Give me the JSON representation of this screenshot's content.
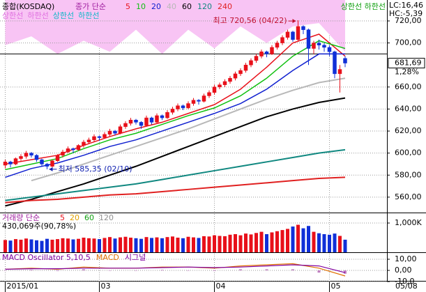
{
  "chart_data": [
    {
      "type": "candlestick",
      "title": "종합(KOSDAQ)",
      "ma_label": "종가 단순",
      "x": [
        0,
        1,
        2,
        3,
        4,
        5,
        6,
        7,
        8,
        9,
        10,
        11,
        12,
        13,
        14,
        15,
        16,
        17,
        18,
        19,
        20,
        21,
        22,
        23,
        24,
        25,
        26,
        27,
        28,
        29,
        30,
        31,
        32,
        33,
        34,
        35,
        36,
        37,
        38,
        39,
        40,
        41,
        42,
        43,
        44,
        45,
        46,
        47,
        48,
        49,
        50,
        51,
        52,
        53,
        54,
        55,
        56,
        57,
        58,
        59,
        60,
        61,
        62,
        63,
        64,
        65
      ],
      "ohlc": [
        [
          589,
          594,
          586,
          592
        ],
        [
          592,
          593,
          587,
          590
        ],
        [
          590,
          596,
          589,
          595
        ],
        [
          595,
          599,
          593,
          597
        ],
        [
          597,
          602,
          595,
          600
        ],
        [
          600,
          601,
          596,
          598
        ],
        [
          598,
          599,
          592,
          594
        ],
        [
          594,
          595,
          588,
          590
        ],
        [
          590,
          591,
          585.35,
          588
        ],
        [
          588,
          594,
          587,
          593
        ],
        [
          593,
          599,
          592,
          598
        ],
        [
          598,
          603,
          596,
          601
        ],
        [
          601,
          606,
          600,
          604
        ],
        [
          604,
          605,
          600,
          603
        ],
        [
          603,
          608,
          602,
          607
        ],
        [
          607,
          612,
          605,
          610
        ],
        [
          610,
          614,
          608,
          612
        ],
        [
          612,
          617,
          610,
          615
        ],
        [
          615,
          616,
          611,
          614
        ],
        [
          614,
          619,
          613,
          617
        ],
        [
          617,
          622,
          615,
          620
        ],
        [
          620,
          621,
          616,
          618
        ],
        [
          618,
          626,
          617,
          624
        ],
        [
          624,
          629,
          622,
          627
        ],
        [
          627,
          632,
          625,
          630
        ],
        [
          630,
          631,
          626,
          628
        ],
        [
          628,
          629,
          622,
          625
        ],
        [
          625,
          634,
          624,
          632
        ],
        [
          632,
          633,
          626,
          628
        ],
        [
          628,
          636,
          627,
          634
        ],
        [
          634,
          635,
          630,
          632
        ],
        [
          632,
          639,
          631,
          637
        ],
        [
          637,
          642,
          635,
          640
        ],
        [
          640,
          645,
          638,
          643
        ],
        [
          643,
          644,
          639,
          641
        ],
        [
          641,
          647,
          640,
          645
        ],
        [
          645,
          650,
          643,
          648
        ],
        [
          648,
          649,
          644,
          647
        ],
        [
          647,
          654,
          646,
          652
        ],
        [
          652,
          657,
          650,
          655
        ],
        [
          655,
          662,
          653,
          660
        ],
        [
          660,
          664,
          658,
          662
        ],
        [
          662,
          667,
          660,
          665
        ],
        [
          665,
          670,
          663,
          668
        ],
        [
          668,
          674,
          666,
          672
        ],
        [
          672,
          677,
          670,
          675
        ],
        [
          675,
          682,
          673,
          680
        ],
        [
          680,
          686,
          678,
          684
        ],
        [
          684,
          690,
          682,
          688
        ],
        [
          688,
          694,
          686,
          692
        ],
        [
          692,
          693,
          687,
          690
        ],
        [
          690,
          698,
          689,
          696
        ],
        [
          696,
          702,
          694,
          700
        ],
        [
          700,
          707,
          698,
          705
        ],
        [
          705,
          712,
          703,
          710
        ],
        [
          710,
          711,
          701,
          703
        ],
        [
          703,
          720.56,
          702,
          715
        ],
        [
          715,
          716,
          708,
          712
        ],
        [
          712,
          713,
          680,
          695
        ],
        [
          695,
          702,
          690,
          700
        ],
        [
          700,
          703,
          694,
          698
        ],
        [
          698,
          700,
          692,
          696
        ],
        [
          696,
          698,
          688,
          692
        ],
        [
          692,
          693,
          668,
          672
        ],
        [
          672,
          680,
          655,
          676
        ],
        [
          686,
          688,
          678,
          681.69
        ]
      ],
      "up_color": "#e8101a",
      "down_color": "#1030d8",
      "series": [
        {
          "name": "5",
          "color": "#e8101a",
          "x": [
            0,
            5,
            10,
            15,
            20,
            25,
            30,
            35,
            40,
            45,
            50,
            55,
            60,
            65
          ],
          "values": [
            590,
            594,
            598,
            607,
            615,
            622,
            628,
            636,
            644,
            658,
            678,
            700,
            708,
            688
          ]
        },
        {
          "name": "10",
          "color": "#10c010",
          "x": [
            0,
            5,
            10,
            15,
            20,
            25,
            30,
            35,
            40,
            45,
            50,
            55,
            60,
            65
          ],
          "values": [
            585,
            590,
            595,
            604,
            612,
            618,
            626,
            634,
            641,
            652,
            668,
            688,
            702,
            695
          ]
        },
        {
          "name": "20",
          "color": "#1020d0",
          "x": [
            0,
            5,
            10,
            15,
            20,
            25,
            30,
            35,
            40,
            45,
            50,
            55,
            60,
            65
          ],
          "values": [
            578,
            586,
            591,
            598,
            606,
            612,
            620,
            628,
            636,
            645,
            658,
            675,
            690,
            690
          ]
        },
        {
          "name": "40",
          "color": "#b8b8b8",
          "x": [
            0,
            5,
            10,
            15,
            20,
            25,
            30,
            35,
            40,
            45,
            50,
            55,
            60,
            65
          ],
          "values": [
            null,
            575,
            582,
            590,
            598,
            606,
            614,
            622,
            631,
            640,
            649,
            657,
            664,
            668
          ]
        },
        {
          "name": "60",
          "color": "#000000",
          "x": [
            0,
            5,
            10,
            15,
            20,
            25,
            30,
            35,
            40,
            45,
            50,
            55,
            60,
            65
          ],
          "values": [
            552,
            558,
            565,
            572,
            580,
            588,
            597,
            606,
            615,
            624,
            633,
            640,
            646,
            650
          ]
        },
        {
          "name": "120",
          "color": "#108880",
          "x": [
            0,
            5,
            10,
            15,
            20,
            25,
            30,
            35,
            40,
            45,
            50,
            55,
            60,
            65
          ],
          "values": [
            557,
            560,
            563,
            566,
            569,
            572,
            576,
            580,
            584,
            588,
            592,
            596,
            600,
            603
          ]
        },
        {
          "name": "240",
          "color": "#e02020",
          "x": [
            0,
            5,
            10,
            15,
            20,
            25,
            30,
            35,
            40,
            45,
            50,
            55,
            60,
            65
          ],
          "values": [
            555,
            557,
            558,
            560,
            562,
            563,
            565,
            567,
            569,
            571,
            573,
            575,
            577,
            578
          ]
        }
      ],
      "band": {
        "color": "#f8c4f4",
        "x": [
          0,
          5,
          10,
          15,
          20,
          25,
          30,
          35,
          40,
          45,
          50,
          55,
          60,
          65
        ],
        "values": [
          698,
          706,
          690,
          702,
          692,
          712,
          690,
          712,
          695,
          715,
          700,
          715,
          718,
          692
        ]
      },
      "band_labels": [
        {
          "text": "상한선",
          "color": "#e070e0"
        },
        {
          "text": "하한선",
          "color": "#e070e0"
        },
        {
          "text": "상한선",
          "color": "#10b8c8"
        },
        {
          "text": "하한선",
          "color": "#10b8c8"
        }
      ],
      "band2_label": {
        "text": "상한선 하한선",
        "color": "#10a010"
      },
      "ref_line": 690,
      "ylim": [
        546,
        739
      ],
      "yticks": [
        {
          "value": 720,
          "label": "720,00"
        },
        {
          "value": 700,
          "label": "700,00"
        },
        {
          "value": 660,
          "label": "660,00"
        },
        {
          "value": 640,
          "label": "640,00"
        },
        {
          "value": 620,
          "label": "620,00"
        },
        {
          "value": 600,
          "label": "600,00"
        },
        {
          "value": 580,
          "label": "580,00"
        },
        {
          "value": 560,
          "label": "560,00"
        }
      ],
      "xlim": [
        -1,
        73
      ],
      "xticks": [
        {
          "value": 0,
          "label": "2015/01"
        },
        {
          "value": 18,
          "label": "03"
        },
        {
          "value": 40,
          "label": "04"
        },
        {
          "value": 62,
          "label": "05"
        }
      ],
      "last_date": "05/08",
      "last_price": {
        "value": 681.69,
        "label": "681,69"
      },
      "change_label": "1,28%",
      "lc_label": "LC:16,46",
      "hc_label": "HC:-5,39",
      "annotations": [
        {
          "text": "최고 720,56 (04/22)",
          "x": 56,
          "y": 720.56
        },
        {
          "text": "최저 585,35 (02/10)",
          "x": 8,
          "y": 585.35
        }
      ]
    },
    {
      "type": "bar",
      "title": "거래량 단순",
      "ma_names": [
        {
          "name": "5",
          "color": "#e8101a"
        },
        {
          "name": "20",
          "color": "#e0a000"
        },
        {
          "name": "60",
          "color": "#10a010"
        },
        {
          "name": "120",
          "color": "#909090"
        }
      ],
      "last_label": "430,069주(90,78%)",
      "x": [
        0,
        1,
        2,
        3,
        4,
        5,
        6,
        7,
        8,
        9,
        10,
        11,
        12,
        13,
        14,
        15,
        16,
        17,
        18,
        19,
        20,
        21,
        22,
        23,
        24,
        25,
        26,
        27,
        28,
        29,
        30,
        31,
        32,
        33,
        34,
        35,
        36,
        37,
        38,
        39,
        40,
        41,
        42,
        43,
        44,
        45,
        46,
        47,
        48,
        49,
        50,
        51,
        52,
        53,
        54,
        55,
        56,
        57,
        58,
        59,
        60,
        61,
        62,
        63,
        64,
        65
      ],
      "values": [
        420,
        400,
        450,
        430,
        470,
        440,
        410,
        390,
        460,
        430,
        450,
        480,
        470,
        440,
        460,
        500,
        480,
        470,
        450,
        490,
        520,
        470,
        510,
        530,
        500,
        480,
        460,
        520,
        490,
        510,
        480,
        520,
        540,
        500,
        480,
        530,
        510,
        490,
        550,
        540,
        580,
        560,
        550,
        600,
        620,
        580,
        640,
        610,
        660,
        700,
        620,
        680,
        720,
        760,
        800,
        880,
        940,
        820,
        900,
        700,
        650,
        620,
        600,
        640,
        560,
        430.069
      ],
      "ylim": [
        0,
        1310
      ],
      "yticks": [
        {
          "value": 1000,
          "label": "1,000K"
        }
      ]
    },
    {
      "type": "macd",
      "title": "MACD Oscillator 5,10,5",
      "x": [
        0,
        5,
        10,
        15,
        20,
        25,
        30,
        35,
        40,
        45,
        50,
        55,
        60,
        65
      ],
      "oscillator": [
        0,
        0.5,
        -0.5,
        1,
        0,
        0,
        0.5,
        0,
        -0.5,
        1,
        1,
        1,
        -2,
        -3
      ],
      "osc_color": "#c080c0",
      "series": [
        {
          "name": "MACD",
          "color": "#e07000",
          "values": [
            1,
            2,
            1,
            3,
            2,
            2,
            3,
            3,
            2,
            4,
            5,
            6,
            2,
            -5
          ]
        },
        {
          "name": "시그널",
          "color": "#8000a0",
          "values": [
            1,
            1.5,
            1.5,
            2,
            2,
            2,
            2.5,
            3,
            2.5,
            3,
            4,
            5,
            4,
            -2
          ]
        }
      ],
      "ylim": [
        -10,
        15
      ],
      "yticks": [
        {
          "value": 10,
          "label": "10,00"
        },
        {
          "value": 0,
          "label": "0,00"
        },
        {
          "value": -10,
          "label": "-10,0"
        }
      ]
    }
  ]
}
